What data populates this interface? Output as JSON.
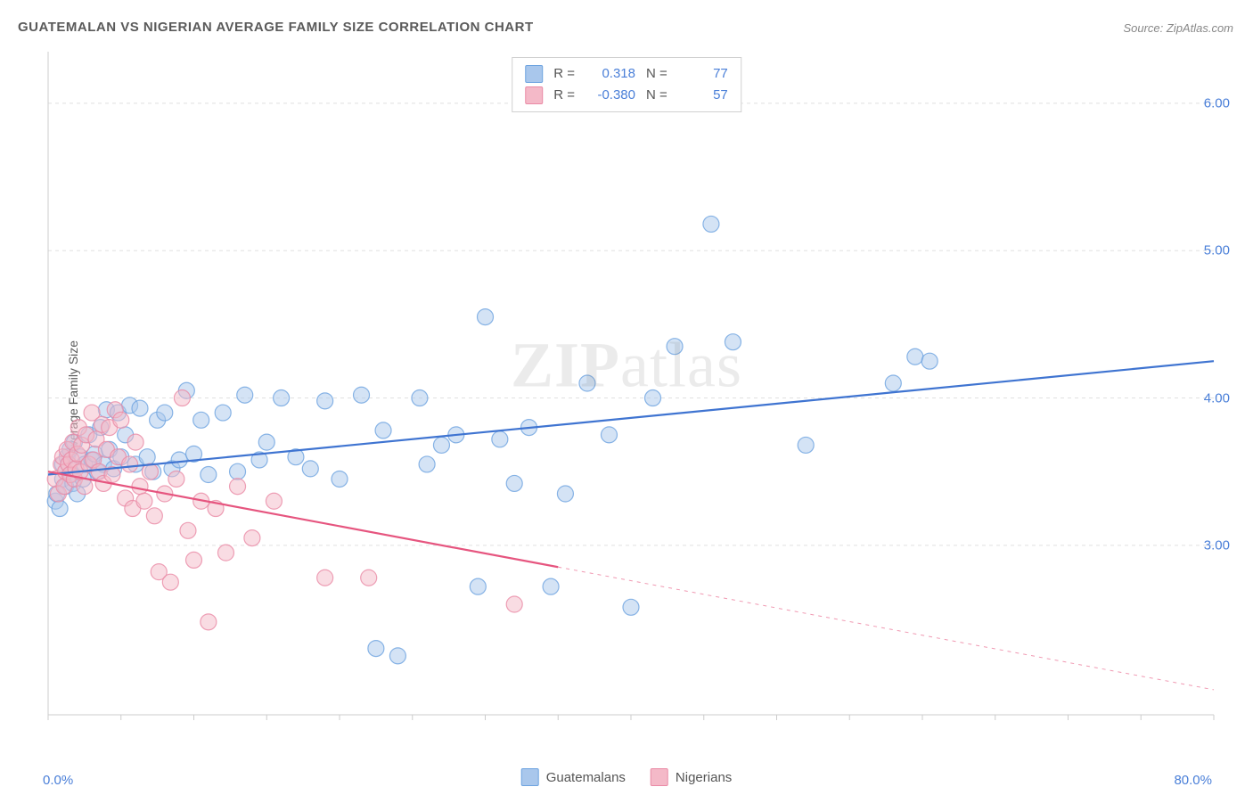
{
  "title": "GUATEMALAN VS NIGERIAN AVERAGE FAMILY SIZE CORRELATION CHART",
  "source": "Source: ZipAtlas.com",
  "ylabel": "Average Family Size",
  "watermark": "ZIPatlas",
  "chart": {
    "type": "scatter",
    "xlim": [
      0,
      80
    ],
    "ylim": [
      1.85,
      6.35
    ],
    "xtick_label_left": "0.0%",
    "xtick_label_right": "80.0%",
    "xtick_positions": [
      0,
      5,
      10,
      15,
      20,
      25,
      30,
      35,
      40,
      45,
      50,
      55,
      60,
      65,
      70,
      75,
      80
    ],
    "ytick_labels": [
      "3.00",
      "4.00",
      "5.00",
      "6.00"
    ],
    "ytick_positions": [
      3,
      4,
      5,
      6
    ],
    "grid_color": "#e0e0e0",
    "grid_dash": "4,4",
    "axis_color": "#cccccc",
    "background_color": "#ffffff",
    "marker_radius": 9,
    "marker_opacity": 0.5,
    "marker_stroke_width": 1.2,
    "line_width": 2.2,
    "series": {
      "guatemalans": {
        "label": "Guatemalans",
        "color_fill": "#a9c7ec",
        "color_stroke": "#6da3e0",
        "line_color": "#3f74d1",
        "R": "0.318",
        "N": "77",
        "trend": {
          "x1": 0,
          "y1": 3.48,
          "x2": 80,
          "y2": 4.25,
          "solid_until": 80
        },
        "points": [
          [
            0.5,
            3.3
          ],
          [
            0.6,
            3.35
          ],
          [
            0.8,
            3.25
          ],
          [
            1.0,
            3.45
          ],
          [
            1.0,
            3.55
          ],
          [
            1.2,
            3.4
          ],
          [
            1.3,
            3.6
          ],
          [
            1.4,
            3.55
          ],
          [
            1.5,
            3.65
          ],
          [
            1.6,
            3.48
          ],
          [
            1.7,
            3.42
          ],
          [
            1.8,
            3.7
          ],
          [
            2.0,
            3.35
          ],
          [
            2.2,
            3.6
          ],
          [
            2.4,
            3.45
          ],
          [
            2.5,
            3.55
          ],
          [
            2.8,
            3.75
          ],
          [
            3.0,
            3.58
          ],
          [
            3.2,
            3.62
          ],
          [
            3.4,
            3.5
          ],
          [
            3.6,
            3.8
          ],
          [
            3.8,
            3.55
          ],
          [
            4.0,
            3.92
          ],
          [
            4.2,
            3.65
          ],
          [
            4.5,
            3.52
          ],
          [
            4.8,
            3.9
          ],
          [
            5.0,
            3.6
          ],
          [
            5.3,
            3.75
          ],
          [
            5.6,
            3.95
          ],
          [
            6.0,
            3.55
          ],
          [
            6.3,
            3.93
          ],
          [
            6.8,
            3.6
          ],
          [
            7.2,
            3.5
          ],
          [
            7.5,
            3.85
          ],
          [
            8.0,
            3.9
          ],
          [
            8.5,
            3.52
          ],
          [
            9.0,
            3.58
          ],
          [
            9.5,
            4.05
          ],
          [
            10.0,
            3.62
          ],
          [
            10.5,
            3.85
          ],
          [
            11.0,
            3.48
          ],
          [
            12.0,
            3.9
          ],
          [
            13.0,
            3.5
          ],
          [
            13.5,
            4.02
          ],
          [
            14.5,
            3.58
          ],
          [
            15.0,
            3.7
          ],
          [
            16.0,
            4.0
          ],
          [
            17.0,
            3.6
          ],
          [
            18.0,
            3.52
          ],
          [
            19.0,
            3.98
          ],
          [
            20.0,
            3.45
          ],
          [
            21.5,
            4.02
          ],
          [
            22.5,
            2.3
          ],
          [
            23.0,
            3.78
          ],
          [
            24.0,
            2.25
          ],
          [
            25.5,
            4.0
          ],
          [
            26.0,
            3.55
          ],
          [
            27.0,
            3.68
          ],
          [
            28.0,
            3.75
          ],
          [
            29.5,
            2.72
          ],
          [
            30.0,
            4.55
          ],
          [
            31.0,
            3.72
          ],
          [
            32.0,
            3.42
          ],
          [
            33.0,
            3.8
          ],
          [
            34.5,
            2.72
          ],
          [
            35.5,
            3.35
          ],
          [
            37.0,
            4.1
          ],
          [
            38.5,
            3.75
          ],
          [
            40.0,
            2.58
          ],
          [
            41.5,
            4.0
          ],
          [
            43.0,
            4.35
          ],
          [
            45.5,
            5.18
          ],
          [
            47.0,
            4.38
          ],
          [
            52.0,
            3.68
          ],
          [
            58.0,
            4.1
          ],
          [
            59.5,
            4.28
          ],
          [
            60.5,
            4.25
          ]
        ]
      },
      "nigerians": {
        "label": "Nigerians",
        "color_fill": "#f4b9c8",
        "color_stroke": "#ea8aa5",
        "line_color": "#e6557f",
        "R": "-0.380",
        "N": "57",
        "trend": {
          "x1": 0,
          "y1": 3.5,
          "x2": 80,
          "y2": 2.02,
          "solid_until": 35
        },
        "points": [
          [
            0.5,
            3.45
          ],
          [
            0.7,
            3.35
          ],
          [
            0.9,
            3.55
          ],
          [
            1.0,
            3.6
          ],
          [
            1.1,
            3.4
          ],
          [
            1.2,
            3.5
          ],
          [
            1.3,
            3.65
          ],
          [
            1.4,
            3.55
          ],
          [
            1.5,
            3.48
          ],
          [
            1.6,
            3.58
          ],
          [
            1.7,
            3.7
          ],
          [
            1.8,
            3.45
          ],
          [
            1.9,
            3.52
          ],
          [
            2.0,
            3.62
          ],
          [
            2.1,
            3.8
          ],
          [
            2.2,
            3.5
          ],
          [
            2.3,
            3.68
          ],
          [
            2.5,
            3.4
          ],
          [
            2.6,
            3.75
          ],
          [
            2.8,
            3.55
          ],
          [
            3.0,
            3.9
          ],
          [
            3.1,
            3.58
          ],
          [
            3.3,
            3.72
          ],
          [
            3.5,
            3.5
          ],
          [
            3.7,
            3.82
          ],
          [
            3.8,
            3.42
          ],
          [
            4.0,
            3.65
          ],
          [
            4.2,
            3.8
          ],
          [
            4.4,
            3.48
          ],
          [
            4.6,
            3.92
          ],
          [
            4.8,
            3.6
          ],
          [
            5.0,
            3.85
          ],
          [
            5.3,
            3.32
          ],
          [
            5.6,
            3.55
          ],
          [
            5.8,
            3.25
          ],
          [
            6.0,
            3.7
          ],
          [
            6.3,
            3.4
          ],
          [
            6.6,
            3.3
          ],
          [
            7.0,
            3.5
          ],
          [
            7.3,
            3.2
          ],
          [
            7.6,
            2.82
          ],
          [
            8.0,
            3.35
          ],
          [
            8.4,
            2.75
          ],
          [
            8.8,
            3.45
          ],
          [
            9.2,
            4.0
          ],
          [
            9.6,
            3.1
          ],
          [
            10.0,
            2.9
          ],
          [
            10.5,
            3.3
          ],
          [
            11.0,
            2.48
          ],
          [
            11.5,
            3.25
          ],
          [
            12.2,
            2.95
          ],
          [
            13.0,
            3.4
          ],
          [
            14.0,
            3.05
          ],
          [
            15.5,
            3.3
          ],
          [
            19.0,
            2.78
          ],
          [
            22.0,
            2.78
          ],
          [
            32.0,
            2.6
          ]
        ]
      }
    }
  },
  "top_legend_labels": {
    "R": "R =",
    "N": "N ="
  }
}
